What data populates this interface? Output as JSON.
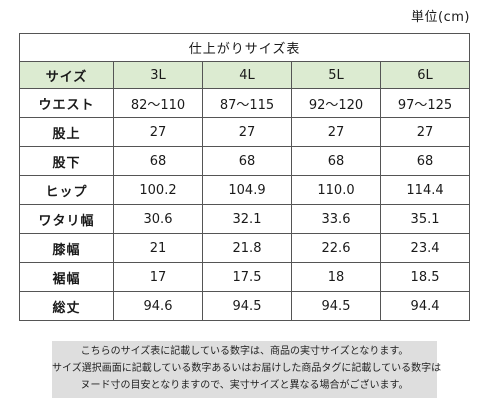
{
  "unit_label": "単位(cm)",
  "table": {
    "title": "仕上がりサイズ表",
    "header": {
      "label": "サイズ",
      "sizes": [
        "3L",
        "4L",
        "5L",
        "6L"
      ]
    },
    "rows": [
      {
        "label": "ウエスト",
        "values": [
          "82～110",
          "87～115",
          "92～120",
          "97～125"
        ]
      },
      {
        "label": "股上",
        "values": [
          "27",
          "27",
          "27",
          "27"
        ]
      },
      {
        "label": "股下",
        "values": [
          "68",
          "68",
          "68",
          "68"
        ]
      },
      {
        "label": "ヒップ",
        "values": [
          "100.2",
          "104.9",
          "110.0",
          "114.4"
        ]
      },
      {
        "label": "ワタリ幅",
        "values": [
          "30.6",
          "32.1",
          "33.6",
          "35.1"
        ]
      },
      {
        "label": "膝幅",
        "values": [
          "21",
          "21.8",
          "22.6",
          "23.4"
        ]
      },
      {
        "label": "裾幅",
        "values": [
          "17",
          "17.5",
          "18",
          "18.5"
        ]
      },
      {
        "label": "総丈",
        "values": [
          "94.6",
          "94.5",
          "94.5",
          "94.4"
        ]
      }
    ]
  },
  "note": {
    "lines": [
      "こちらのサイズ表に記載している数字は、商品の実寸サイズとなります。",
      "サイズ選択画面に記載している数字あるいはお届けした商品タグに記載している数字は",
      "ヌード寸の目安となりますので、実寸サイズと異なる場合がございます。"
    ]
  }
}
